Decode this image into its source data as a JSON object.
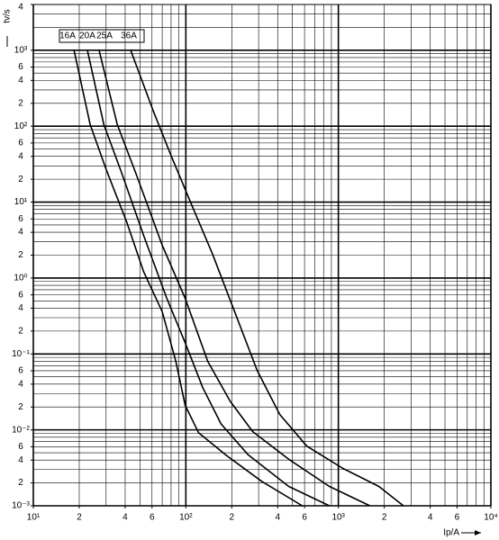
{
  "chart_data": {
    "type": "line",
    "y_label": "tv/s",
    "x_label": "Ip/A",
    "log_x": true,
    "log_y": true,
    "color": "#000000",
    "xlim": [
      10,
      10000
    ],
    "ylim": [
      0.001,
      4000
    ],
    "xticks": [
      {
        "value": 10,
        "label": "10¹"
      },
      {
        "value": 20,
        "label": "2"
      },
      {
        "value": 40,
        "label": "4"
      },
      {
        "value": 60,
        "label": "6"
      },
      {
        "value": 100,
        "label": "10²"
      },
      {
        "value": 200,
        "label": "2"
      },
      {
        "value": 400,
        "label": "4"
      },
      {
        "value": 600,
        "label": "6"
      },
      {
        "value": 1000,
        "label": "10³"
      },
      {
        "value": 2000,
        "label": "2"
      },
      {
        "value": 4000,
        "label": "4"
      },
      {
        "value": 6000,
        "label": "6"
      },
      {
        "value": 10000,
        "label": "10⁴"
      }
    ],
    "yticks": [
      {
        "value": 4000,
        "label": "4"
      },
      {
        "value": 1000,
        "label": "10³"
      },
      {
        "value": 600,
        "label": "6"
      },
      {
        "value": 400,
        "label": "4"
      },
      {
        "value": 200,
        "label": "2"
      },
      {
        "value": 100,
        "label": "10²"
      },
      {
        "value": 60,
        "label": "6"
      },
      {
        "value": 40,
        "label": "4"
      },
      {
        "value": 20,
        "label": "2"
      },
      {
        "value": 10,
        "label": "10¹"
      },
      6,
      4,
      2,
      {
        "value": 1,
        "label": "10⁰"
      },
      {
        "value": 0.6,
        "label": "6"
      },
      {
        "value": 0.4,
        "label": "4"
      },
      {
        "value": 0.2,
        "label": "2"
      },
      {
        "value": 0.1,
        "label": "10⁻¹"
      },
      {
        "value": 0.06,
        "label": "6"
      },
      {
        "value": 0.04,
        "label": "4"
      },
      {
        "value": 0.02,
        "label": "2"
      },
      {
        "value": 0.01,
        "label": "10⁻²"
      },
      {
        "value": 0.006,
        "label": "6"
      },
      {
        "value": 0.004,
        "label": "4"
      },
      {
        "value": 0.002,
        "label": "2"
      },
      {
        "value": 0.001,
        "label": "10⁻³"
      }
    ],
    "x_grid": [
      10,
      20,
      30,
      40,
      50,
      60,
      70,
      80,
      90,
      100,
      200,
      300,
      400,
      500,
      600,
      700,
      800,
      900,
      1000,
      2000,
      3000,
      4000,
      5000,
      6000,
      7000,
      8000,
      9000,
      10000
    ],
    "y_grid": [
      0.001,
      0.002,
      0.003,
      0.004,
      0.005,
      0.006,
      0.007,
      0.008,
      0.009,
      0.01,
      0.02,
      0.03,
      0.04,
      0.05,
      0.06,
      0.07,
      0.08,
      0.09,
      0.1,
      0.2,
      0.3,
      0.4,
      0.5,
      0.6,
      0.7,
      0.8,
      0.9,
      1,
      2,
      3,
      4,
      5,
      6,
      7,
      8,
      9,
      10,
      20,
      30,
      40,
      50,
      60,
      70,
      80,
      90,
      100,
      200,
      300,
      400,
      500,
      600,
      700,
      800,
      900,
      1000,
      2000,
      3000,
      4000
    ],
    "series": [
      {
        "name": "16A",
        "x": [
          18.5,
          23.6,
          30,
          41,
          53,
          70,
          86,
          99,
          121,
          182,
          314,
          580
        ],
        "values": [
          1000,
          105,
          27,
          5.4,
          1.2,
          0.36,
          0.08,
          0.021,
          0.0092,
          0.0047,
          0.0021,
          0.001
        ]
      },
      {
        "name": "20A",
        "x": [
          22.6,
          29,
          38,
          53,
          75,
          99,
          129,
          170,
          256,
          473,
          873
        ],
        "values": [
          1000,
          105,
          24,
          3.6,
          0.54,
          0.14,
          0.036,
          0.012,
          0.0047,
          0.0018,
          0.001
        ]
      },
      {
        "name": "25A",
        "x": [
          27,
          35.5,
          47,
          70,
          99,
          139,
          195,
          274,
          473,
          873,
          1610
        ],
        "values": [
          1000,
          105,
          24,
          2.7,
          0.54,
          0.08,
          0.024,
          0.0095,
          0.0041,
          0.0018,
          0.001
        ]
      },
      {
        "name": "36A",
        "x": [
          43.5,
          61,
          80,
          106,
          149,
          209,
          293,
          412,
          621,
          1072,
          1845,
          2670
        ],
        "values": [
          1000,
          160,
          41,
          10.6,
          2.1,
          0.36,
          0.061,
          0.016,
          0.0061,
          0.0031,
          0.0018,
          0.001
        ]
      }
    ]
  }
}
